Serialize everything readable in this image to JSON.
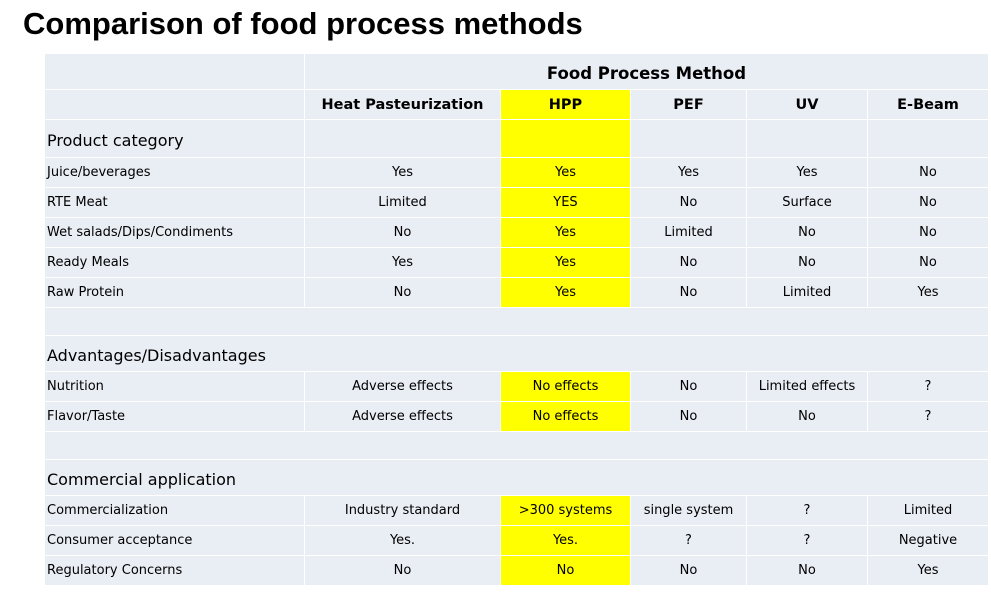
{
  "title": "Comparison of food process methods",
  "table": {
    "method_header": "Food Process Method",
    "columns": [
      "Heat Pasteurization",
      "HPP",
      "PEF",
      "UV",
      "E-Beam"
    ],
    "highlight_color": "#ffff00",
    "sections": [
      {
        "heading": "Product category",
        "rows": [
          {
            "label": "Juice/beverages",
            "values": [
              "Yes",
              "Yes",
              "Yes",
              "Yes",
              "No"
            ]
          },
          {
            "label": "RTE Meat",
            "values": [
              "Limited",
              "YES",
              "No",
              "Surface",
              "No"
            ]
          },
          {
            "label": "Wet salads/Dips/Condiments",
            "values": [
              "No",
              "Yes",
              "Limited",
              "No",
              "No"
            ]
          },
          {
            "label": "Ready Meals",
            "values": [
              "Yes",
              "Yes",
              "No",
              "No",
              "No"
            ]
          },
          {
            "label": "Raw Protein",
            "values": [
              "No",
              "Yes",
              "No",
              "Limited",
              "Yes"
            ]
          }
        ]
      },
      {
        "heading": "Advantages/Disadvantages",
        "rows": [
          {
            "label": "Nutrition",
            "values": [
              "Adverse effects",
              "No effects",
              "No",
              "Limited effects",
              "?"
            ]
          },
          {
            "label": "Flavor/Taste",
            "values": [
              "Adverse effects",
              "No effects",
              "No",
              "No",
              "?"
            ]
          }
        ]
      },
      {
        "heading": "Commercial application",
        "rows": [
          {
            "label": "Commercialization",
            "values": [
              "Industry standard",
              ">300 systems",
              "single system",
              "?",
              "Limited"
            ]
          },
          {
            "label": "Consumer acceptance",
            "values": [
              "Yes.",
              "Yes.",
              "?",
              "?",
              "Negative"
            ]
          },
          {
            "label": "Regulatory Concerns",
            "values": [
              "No",
              "No",
              "No",
              "No",
              "Yes"
            ]
          }
        ]
      }
    ]
  }
}
